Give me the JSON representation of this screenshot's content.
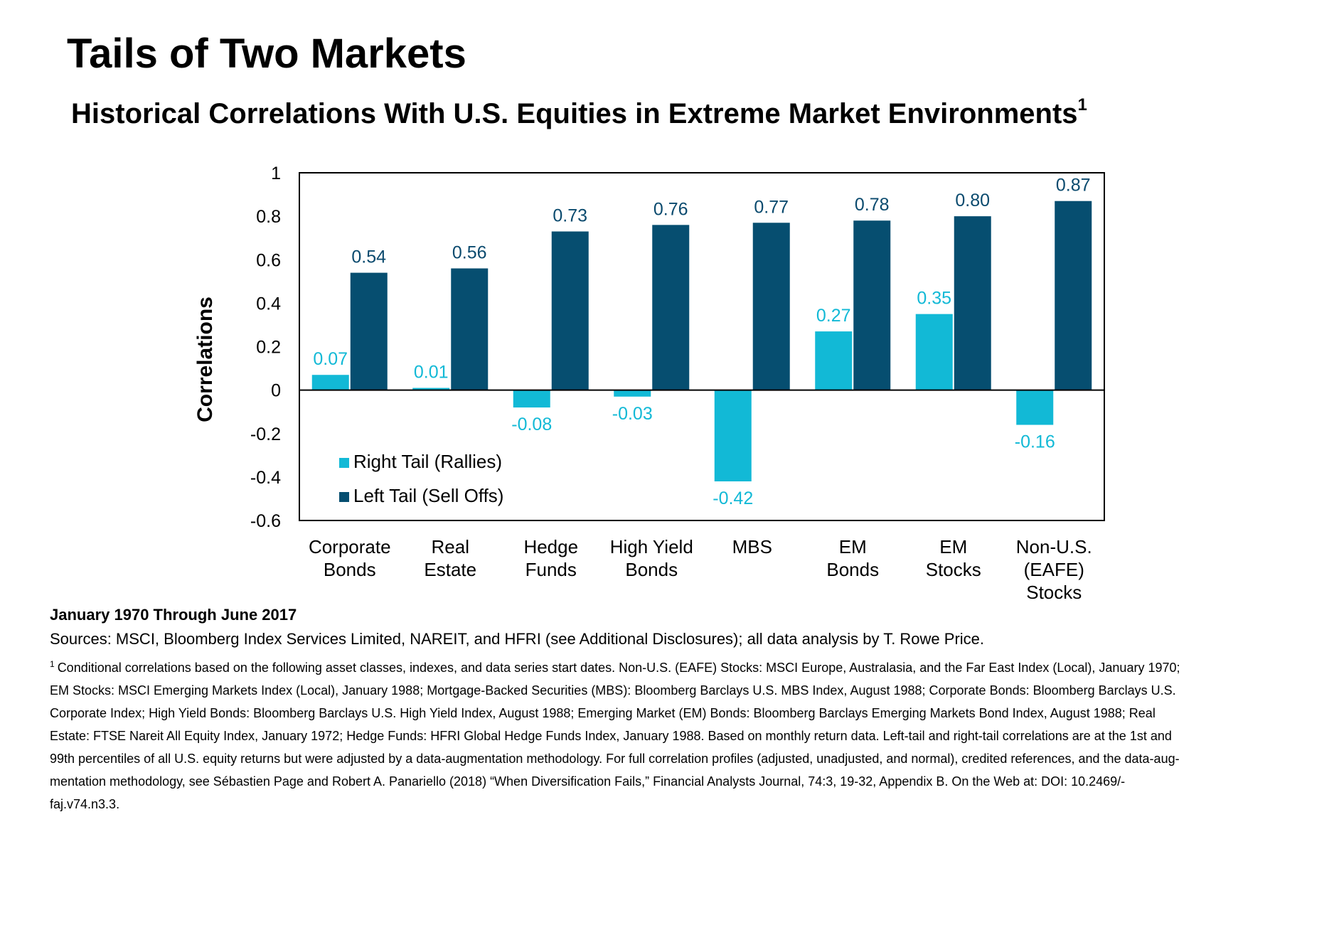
{
  "title": "Tails of Two Markets",
  "subtitle": "Historical Correlations With U.S. Equities in Extreme Market Environments",
  "subtitle_sup": "1",
  "chart_data": {
    "type": "bar",
    "ylabel": "Correlations",
    "ylim": [
      -0.6,
      1
    ],
    "yticks": [
      "1",
      "0.8",
      "0.6",
      "0.4",
      "0.2",
      "0",
      "-0.2",
      "-0.4",
      "-0.6"
    ],
    "ytick_values": [
      1,
      0.8,
      0.6,
      0.4,
      0.2,
      0,
      -0.2,
      -0.4,
      -0.6
    ],
    "categories": [
      [
        "Corporate",
        "Bonds"
      ],
      [
        "Real",
        "Estate"
      ],
      [
        "Hedge",
        "Funds"
      ],
      [
        "High Yield",
        "Bonds"
      ],
      [
        "MBS"
      ],
      [
        "EM",
        "Bonds"
      ],
      [
        "EM",
        "Stocks"
      ],
      [
        "Non-U.S.",
        "(EAFE)",
        "Stocks"
      ]
    ],
    "series": [
      {
        "name": "Right Tail (Rallies)",
        "color": "#12b9d6",
        "values": [
          0.07,
          0.01,
          -0.08,
          -0.03,
          -0.42,
          0.27,
          0.35,
          -0.16
        ],
        "labels": [
          "0.07",
          "0.01",
          "-0.08",
          "-0.03",
          "-0.42",
          "0.27",
          "0.35",
          "-0.16"
        ]
      },
      {
        "name": "Left Tail (Sell Offs)",
        "color": "#064e70",
        "values": [
          0.54,
          0.56,
          0.73,
          0.76,
          0.77,
          0.78,
          0.8,
          0.87
        ],
        "labels": [
          "0.54",
          "0.56",
          "0.73",
          "0.76",
          "0.77",
          "0.78",
          "0.80",
          "0.87"
        ]
      }
    ],
    "legend_position": "bottom-left",
    "grid": false
  },
  "footer": {
    "period": "January 1970 Through June 2017",
    "sources": "Sources: MSCI, Bloomberg Index Services Limited, NAREIT, and HFRI (see Additional Disclosures); all data analysis by T. Rowe Price.",
    "footnote_mark": "1",
    "footnote_lines": [
      "Conditional correlations based on the following asset classes, indexes, and data series start dates. Non-U.S. (EAFE) Stocks: MSCI Europe, Australasia, and the Far East Index (Local), January 1970;",
      "EM Stocks: MSCI Emerging Markets Index (Local), January 1988; Mortgage-Backed Securities (MBS): Bloomberg Barclays U.S. MBS Index, August 1988; Corporate Bonds: Bloomberg Barclays U.S.",
      "Corporate Index; High Yield Bonds: Bloomberg Barclays U.S. High Yield Index, August 1988; Emerging Market (EM) Bonds: Bloomberg Barclays Emerging Markets Bond Index, August 1988; Real",
      "Estate: FTSE Nareit All Equity Index, January 1972; Hedge Funds: HFRI Global Hedge Funds Index, January 1988. Based on monthly return data. Left-tail and right-tail correlations are at the 1st and",
      "99th percentiles of all U.S. equity returns but were adjusted by a data-augmentation methodology. For full correlation profiles (adjusted, unadjusted, and normal), credited references, and the data-aug-",
      "mentation methodology, see Sébastien Page and Robert A. Panariello (2018) “When Diversification Fails,” Financial Analysts Journal, 74:3, 19-32, Appendix B. On the Web at: DOI: 10.2469/-",
      "faj.v74.n3.3."
    ]
  }
}
